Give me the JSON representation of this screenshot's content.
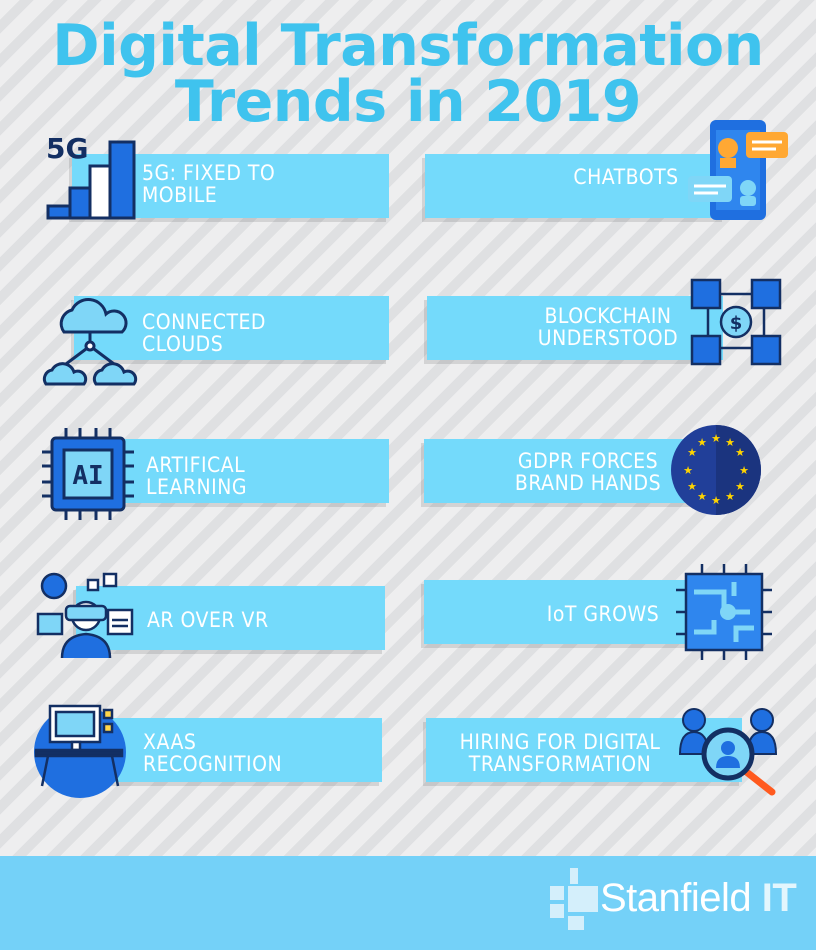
{
  "title": {
    "line1": "Digital Transformation",
    "line2": "Trends in 2019"
  },
  "trends_left": [
    {
      "label_line1": "5G: FIXED TO",
      "label_line2": "MOBILE",
      "icon": "5g-signal-icon"
    },
    {
      "label_line1": "CONNECTED",
      "label_line2": "CLOUDS",
      "icon": "cloud-network-icon"
    },
    {
      "label_line1": "ARTIFICAL",
      "label_line2": "LEARNING",
      "icon": "ai-chip-icon"
    },
    {
      "label_line1": "AR OVER VR",
      "label_line2": "",
      "icon": "vr-headset-icon"
    },
    {
      "label_line1": "XAAS",
      "label_line2": "RECOGNITION",
      "icon": "computer-desk-icon"
    }
  ],
  "trends_right": [
    {
      "label_line1": "CHATBOTS",
      "label_line2": "",
      "icon": "chatbot-phone-icon"
    },
    {
      "label_line1": "BLOCKCHAIN",
      "label_line2": "UNDERSTOOD",
      "icon": "blockchain-icon"
    },
    {
      "label_line1": "GDPR FORCES",
      "label_line2": "BRAND HANDS",
      "icon": "eu-flag-icon"
    },
    {
      "label_line1": "IoT GROWS",
      "label_line2": "",
      "icon": "iot-circuit-icon"
    },
    {
      "label_line1": "HIRING FOR DIGITAL",
      "label_line2": "TRANSFORMATION",
      "icon": "people-search-icon"
    }
  ],
  "footer": {
    "brand_name": "Stanfield",
    "brand_suffix": "IT"
  },
  "colors": {
    "title": "#3fc3ee",
    "card": "#74dafb",
    "icon_blue": "#1f6fe0",
    "icon_dark": "#132f63",
    "footer": "#74d1f8"
  }
}
